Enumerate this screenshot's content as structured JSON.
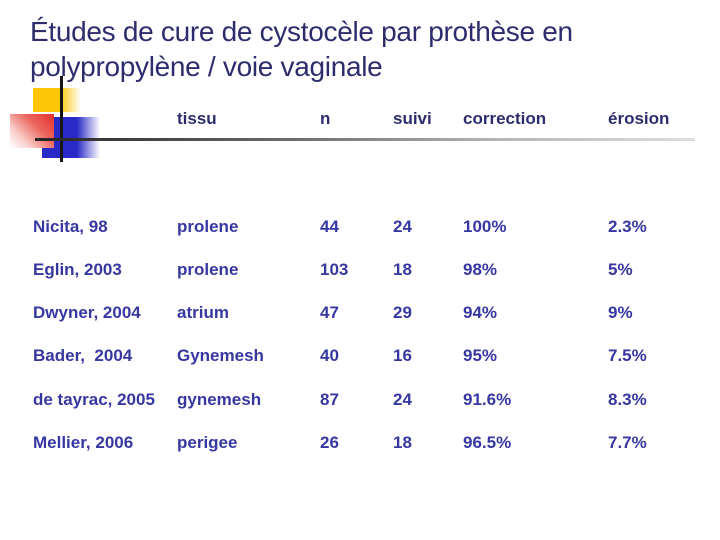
{
  "title": {
    "line1": "Études de cure de cystocèle par prothèse en",
    "line2": "polypropylène / voie vaginale"
  },
  "table": {
    "headers": [
      "tissu",
      "n",
      "suivi",
      "correction",
      "érosion"
    ],
    "rows": [
      {
        "cells": [
          "Nicita, 98",
          "prolene",
          "44",
          "24",
          "100%",
          "2.3%"
        ]
      },
      {
        "cells": [
          "Eglin, 2003",
          "prolene",
          "103",
          "18",
          "98%",
          "5%"
        ]
      },
      {
        "cells": [
          "Dwyner, 2004",
          "atrium",
          "47",
          "29",
          "94%",
          "9%"
        ]
      },
      {
        "cells": [
          "Bader,  2004",
          "Gynemesh",
          "40",
          "16",
          "95%",
          "7.5%"
        ]
      },
      {
        "cells": [
          "de tayrac, 2005",
          "gynemesh",
          "87",
          "24",
          "91.6%",
          "8.3%"
        ]
      },
      {
        "cells": [
          "Mellier, 2006",
          "perigee",
          "26",
          "18",
          "96.5%",
          "7.7%"
        ]
      }
    ]
  },
  "colors": {
    "title_text": "#2d2d6e",
    "header_text": "#2d2d6e",
    "data_text": "#3737a2",
    "accent_yellow": "#ffc607",
    "accent_red": "#e42f2b",
    "accent_blue": "#2929c8",
    "rule_dark": "#242424",
    "rule_light": "#dedede"
  }
}
